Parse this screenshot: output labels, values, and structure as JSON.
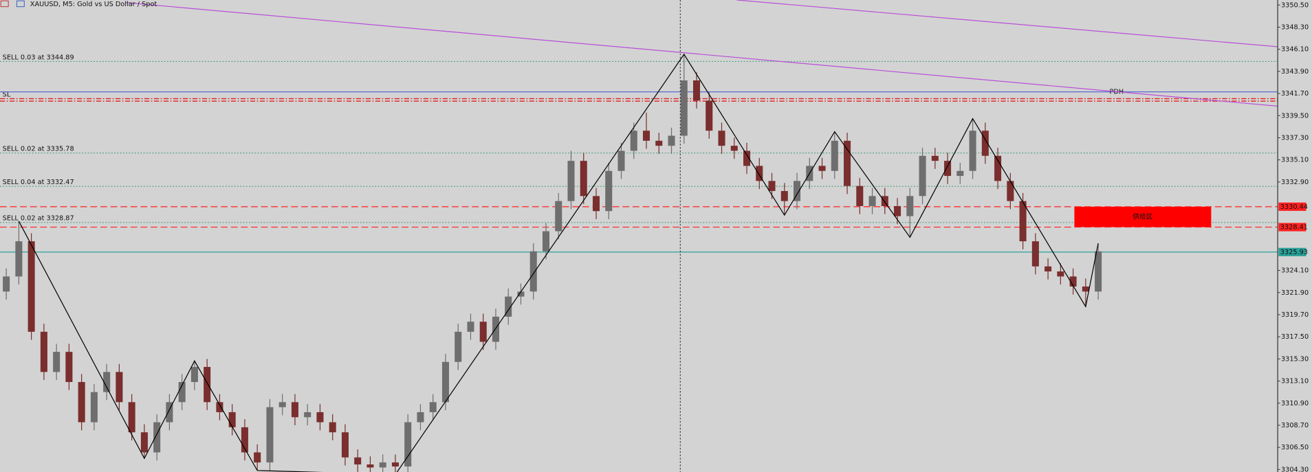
{
  "chart_data": {
    "type": "candlestick",
    "title": "XAUUSD, M5:  Gold vs US Dollar / Spot",
    "up_color": "#6e6e6e",
    "down_color": "#7a2e2e",
    "xlim": [
      -0.5,
      101.3
    ],
    "ylim": [
      3304.05,
      3351.0
    ],
    "yticks": [
      {
        "value": 3350.5,
        "label": "3350.50"
      },
      {
        "value": 3348.3,
        "label": "3348.30"
      },
      {
        "value": 3346.1,
        "label": "3346.10"
      },
      {
        "value": 3343.9,
        "label": "3343.90"
      },
      {
        "value": 3341.7,
        "label": "3341.70"
      },
      {
        "value": 3339.5,
        "label": "3339.50"
      },
      {
        "value": 3337.3,
        "label": "3337.30"
      },
      {
        "value": 3335.1,
        "label": "3335.10"
      },
      {
        "value": 3332.9,
        "label": "3332.90"
      },
      {
        "value": 3324.1,
        "label": "3324.10"
      },
      {
        "value": 3321.9,
        "label": "3321.90"
      },
      {
        "value": 3319.7,
        "label": "3319.70"
      },
      {
        "value": 3317.5,
        "label": "3317.50"
      },
      {
        "value": 3315.3,
        "label": "3315.30"
      },
      {
        "value": 3313.1,
        "label": "3313.10"
      },
      {
        "value": 3310.9,
        "label": "3310.90"
      },
      {
        "value": 3308.7,
        "label": "3308.70"
      },
      {
        "value": 3306.5,
        "label": "3306.50"
      },
      {
        "value": 3304.3,
        "label": "3304.30"
      }
    ],
    "open": [
      3322,
      3323.5,
      3327,
      3318,
      3314,
      3316,
      3313,
      3309,
      3312,
      3314,
      3311,
      3308,
      3306,
      3309,
      3311,
      3313,
      3314.5,
      3311,
      3310,
      3308.5,
      3306,
      3305,
      3310.5,
      3311,
      3309.5,
      3310,
      3309,
      3308,
      3305.5,
      3304.8,
      3304.5,
      3305,
      3304.6,
      3309,
      3310,
      3311,
      3315,
      3318,
      3319,
      3317,
      3319.5,
      3321.5,
      3322,
      3326,
      3328,
      3331,
      3335,
      3331.5,
      3330,
      3334,
      3336,
      3338,
      3337,
      3336.5,
      3337.5,
      3343,
      3341,
      3338,
      3336.5,
      3336,
      3334.5,
      3333,
      3332,
      3331,
      3333,
      3334.5,
      3334,
      3337,
      3332.5,
      3330.5,
      3331.5,
      3330.5,
      3329.5,
      3331.5,
      3335.5,
      3335,
      3333.5,
      3334,
      3338,
      3335.5,
      3333,
      3331,
      3327,
      3324.5,
      3324,
      3323.5,
      3322.5,
      3322
    ],
    "high": [
      3324.3,
      3329,
      3327.8,
      3318.8,
      3316.8,
      3316.8,
      3313.8,
      3312.8,
      3314.8,
      3314.8,
      3311.8,
      3308.8,
      3309.8,
      3311.8,
      3313.8,
      3315.1,
      3315.3,
      3311.8,
      3310.8,
      3309.3,
      3306.8,
      3311.3,
      3311.8,
      3311.8,
      3310.8,
      3310.8,
      3309.8,
      3308.8,
      3306.3,
      3305.6,
      3305.8,
      3305.8,
      3309.8,
      3310.8,
      3311.8,
      3315.8,
      3318.8,
      3319.8,
      3319.8,
      3320.3,
      3322.3,
      3322.8,
      3326.8,
      3328.8,
      3331.8,
      3336,
      3335.8,
      3332.3,
      3334.8,
      3336.8,
      3338.8,
      3339.8,
      3337.8,
      3338.3,
      3345.6,
      3343.8,
      3341.8,
      3338.8,
      3337.3,
      3336.8,
      3335.3,
      3333.8,
      3332.8,
      3333.8,
      3335.3,
      3335.3,
      3337.9,
      3337.8,
      3333.3,
      3332.3,
      3332.3,
      3331.3,
      3332.3,
      3336.3,
      3336.3,
      3335.8,
      3334.8,
      3339.2,
      3338.8,
      3336.3,
      3333.8,
      3331.8,
      3327.8,
      3325.3,
      3324.8,
      3324.3,
      3323.3,
      3326.8
    ],
    "low": [
      3321.2,
      3322.7,
      3317.2,
      3313.2,
      3313.2,
      3312.2,
      3308.2,
      3308.2,
      3311.2,
      3310.2,
      3307.2,
      3305.4,
      3305.2,
      3308.2,
      3310.2,
      3312.2,
      3310.2,
      3309.2,
      3307.7,
      3305.2,
      3304.2,
      3304.2,
      3309.7,
      3308.7,
      3308.7,
      3308.2,
      3307.2,
      3304.7,
      3304.0,
      3303.7,
      3303.7,
      3303.8,
      3303.8,
      3308.2,
      3309.2,
      3310.2,
      3314.2,
      3317.2,
      3316.2,
      3316.2,
      3318.7,
      3320.7,
      3321.2,
      3325.2,
      3327.2,
      3330.2,
      3330.7,
      3329.2,
      3329.2,
      3333.2,
      3335.2,
      3336.2,
      3335.7,
      3335.7,
      3336.7,
      3340.2,
      3337.2,
      3335.7,
      3335.2,
      3333.7,
      3332.2,
      3331.2,
      3329.6,
      3330.2,
      3332.2,
      3333.2,
      3333.2,
      3331.7,
      3329.7,
      3329.7,
      3329.7,
      3328.7,
      3327.4,
      3330.7,
      3334.2,
      3332.7,
      3332.7,
      3333.2,
      3334.7,
      3332.2,
      3330.2,
      3326.2,
      3323.7,
      3323.2,
      3322.7,
      3321.7,
      3320.5,
      3321.2
    ],
    "close": [
      3323.5,
      3327,
      3318,
      3314,
      3316,
      3313,
      3309,
      3312,
      3314,
      3311,
      3308,
      3306,
      3309,
      3311,
      3313,
      3314.5,
      3311,
      3310,
      3308.5,
      3306,
      3305,
      3310.5,
      3311,
      3309.5,
      3310,
      3309,
      3308,
      3305.5,
      3304.8,
      3304.5,
      3305,
      3304.6,
      3309,
      3310,
      3311,
      3315,
      3318,
      3319,
      3317,
      3319.5,
      3321.5,
      3322,
      3326,
      3328,
      3331,
      3335,
      3331.5,
      3330,
      3334,
      3336,
      3338,
      3337,
      3336.5,
      3337.5,
      3343,
      3341,
      3338,
      3336.5,
      3336,
      3334.5,
      3333,
      3332,
      3331,
      3333,
      3334.5,
      3334,
      3337,
      3332.5,
      3330.5,
      3331.5,
      3330.5,
      3329.5,
      3331.5,
      3335.5,
      3335,
      3333.5,
      3334,
      3338,
      3335.5,
      3333,
      3331,
      3327,
      3324.5,
      3324,
      3323.5,
      3322.5,
      3322,
      3326
    ],
    "zigzag": {
      "color": "#000000",
      "x": [
        1,
        11,
        15,
        20,
        31,
        54,
        62,
        66,
        72,
        77,
        86,
        87
      ],
      "values": [
        3329,
        3305.4,
        3315.1,
        3304.2,
        3303.8,
        3345.6,
        3329.6,
        3337.9,
        3327.4,
        3339.2,
        3320.5,
        3326.8
      ]
    },
    "trendlines": [
      {
        "color": "#b94fd8",
        "x": [
          9.5,
          101.3
        ],
        "values": [
          3350.75,
          3340.44
        ]
      },
      {
        "color": "#b94fd8",
        "x": [
          58.2,
          101.3
        ],
        "values": [
          3351.0,
          3346.35
        ]
      }
    ],
    "levels": [
      {
        "label": "SELL 0.03 at 3344.89",
        "value": 3344.89,
        "color": "#3f9f78",
        "style": "dotted"
      },
      {
        "label": "SL",
        "value": 3341.19,
        "color": "#e02020",
        "style": "dashdot"
      },
      {
        "value": 3340.94,
        "color": "#e02020",
        "style": "dashdot"
      },
      {
        "label": "SELL 0.02 at 3335.78",
        "value": 3335.78,
        "color": "#3f9f78",
        "style": "dotted"
      },
      {
        "label": "SELL 0.04 at 3332.47",
        "value": 3332.47,
        "color": "#3f9f78",
        "style": "dotted"
      },
      {
        "label": "SELL 0.02 at 3328.87",
        "value": 3328.87,
        "color": "#3f9f78",
        "style": "dotted"
      }
    ],
    "pdh": {
      "label": "PDH",
      "value": 3341.86,
      "color": "#3a4fd0"
    },
    "price_lines": [
      {
        "value": 3330.44,
        "color": "#ff2020",
        "style": "dashed"
      },
      {
        "value": 3328.41,
        "color": "#ff2020",
        "style": "dashed"
      },
      {
        "value": 3325.93,
        "color": "#2aa198",
        "style": "solid"
      }
    ],
    "zone": {
      "label": "供给区",
      "top": 3330.44,
      "bottom": 3328.41,
      "x": [
        85.1,
        96.0
      ],
      "color": "#ff0000"
    }
  }
}
